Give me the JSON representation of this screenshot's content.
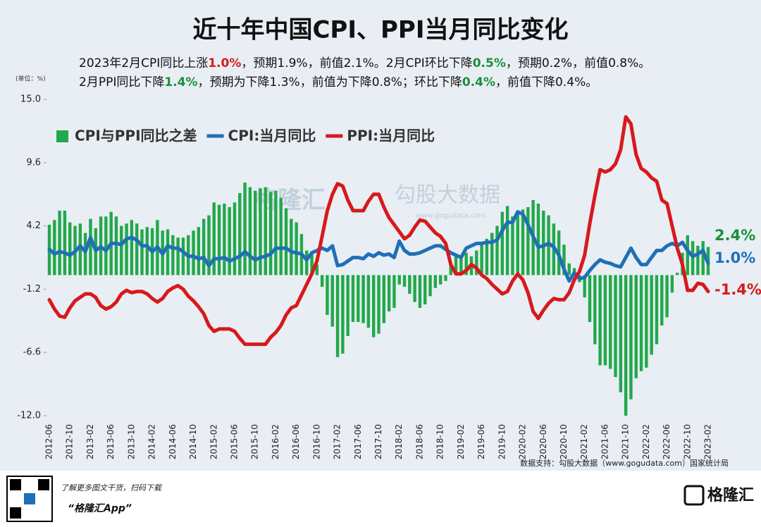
{
  "chart_data": {
    "type": "combo",
    "title": "近十年中国CPI、PPI当月同比变化",
    "subtitle_lines": [
      [
        "2023年2月CPI同比上涨",
        "1.0%",
        "，预期1.9%，前值2.1%。2月CPI环比下降",
        "0.5%",
        "，预期0.2%，前值0.8%。"
      ],
      [
        "2月PPI同比下降",
        "1.4%",
        "，预期为下降1.3%，前值为下降0.8%；环比下降",
        "0.4%",
        "，前值下降0.4%。"
      ]
    ],
    "unit_label": "(单位：%)",
    "source": "数据支持：勾股大数据（www.gogudata.com）国家统计局",
    "watermark": [
      "格隆汇",
      "勾股大数据",
      "www.gogudata.com"
    ],
    "footer": {
      "promo": "了解更多图文干货，扫码下载",
      "app": "“格隆汇App”",
      "logo": "格隆汇"
    },
    "categories": [
      "2012-06",
      null,
      null,
      null,
      "2012-10",
      null,
      null,
      null,
      "2013-02",
      null,
      null,
      null,
      "2013-06",
      null,
      null,
      null,
      "2013-10",
      null,
      null,
      null,
      "2014-02",
      null,
      null,
      null,
      "2014-06",
      null,
      null,
      null,
      "2014-10",
      null,
      null,
      null,
      "2015-02",
      null,
      null,
      null,
      "2015-06",
      null,
      null,
      null,
      "2015-10",
      null,
      null,
      null,
      "2016-02",
      null,
      null,
      null,
      "2016-06",
      null,
      null,
      null,
      "2016-10",
      null,
      null,
      null,
      "2017-02",
      null,
      null,
      null,
      "2017-06",
      null,
      null,
      null,
      "2017-10",
      null,
      null,
      null,
      "2018-02",
      null,
      null,
      null,
      "2018-06",
      null,
      null,
      null,
      "2018-10",
      null,
      null,
      null,
      "2019-02",
      null,
      null,
      null,
      "2019-06",
      null,
      null,
      null,
      "2019-10",
      null,
      null,
      null,
      "2020-02",
      null,
      null,
      null,
      "2020-06",
      null,
      null,
      null,
      "2020-10",
      null,
      null,
      null,
      "2021-02",
      null,
      null,
      null,
      "2021-06",
      null,
      null,
      null,
      "2021-10",
      null,
      null,
      null,
      "2022-02",
      null,
      null,
      null,
      "2022-06",
      null,
      null,
      null,
      "2022-10",
      null,
      null,
      null,
      "2023-02"
    ],
    "series": [
      {
        "name": "CPI与PPI同比之差",
        "type": "bar",
        "color": "#22a84a",
        "end_label": "2.4%",
        "values": [
          4.3,
          4.7,
          5.5,
          5.5,
          4.5,
          4.2,
          4.4,
          3.6,
          4.8,
          4.0,
          5.0,
          5.0,
          5.4,
          5.0,
          4.2,
          4.4,
          4.7,
          4.4,
          3.9,
          4.1,
          4.0,
          4.7,
          3.8,
          3.9,
          3.4,
          3.2,
          3.2,
          3.4,
          3.8,
          4.1,
          4.8,
          5.1,
          6.2,
          6.0,
          6.1,
          5.8,
          6.2,
          7.0,
          7.9,
          7.5,
          7.2,
          7.4,
          7.5,
          7.1,
          7.2,
          6.6,
          5.7,
          4.8,
          4.5,
          3.5,
          2.1,
          1.8,
          0.9,
          -1.0,
          -3.4,
          -4.4,
          -7.0,
          -6.7,
          -5.2,
          -4.0,
          -4.0,
          -4.1,
          -4.5,
          -5.3,
          -5.0,
          -4.1,
          -3.1,
          -2.8,
          -0.8,
          -1.0,
          -1.6,
          -2.3,
          -2.8,
          -2.5,
          -1.8,
          -1.1,
          -0.8,
          -0.5,
          1.0,
          1.6,
          1.4,
          1.9,
          1.6,
          2.1,
          2.7,
          3.1,
          3.6,
          4.2,
          5.4,
          5.9,
          5.0,
          5.3,
          5.6,
          5.8,
          6.4,
          6.1,
          5.5,
          5.1,
          4.4,
          3.8,
          2.6,
          1.0,
          0.6,
          -0.6,
          -1.9,
          -4.0,
          -5.9,
          -7.7,
          -7.7,
          -8.0,
          -8.7,
          -10.0,
          -12.0,
          -10.6,
          -8.8,
          -8.2,
          -7.9,
          -6.8,
          -5.9,
          -4.3,
          -3.6,
          -1.5,
          0.2,
          1.9,
          3.4,
          2.9,
          2.5,
          2.9,
          2.4
        ]
      },
      {
        "name": "CPI:当月同比",
        "type": "line",
        "color": "#1f6fb8",
        "end_label": "1.0%",
        "values": [
          2.2,
          1.8,
          2.0,
          1.9,
          1.7,
          2.0,
          2.5,
          2.0,
          3.2,
          2.1,
          2.4,
          2.1,
          2.7,
          2.7,
          2.6,
          3.1,
          3.2,
          3.0,
          2.5,
          2.5,
          2.0,
          2.4,
          1.8,
          2.5,
          2.3,
          2.3,
          2.0,
          1.6,
          1.6,
          1.4,
          1.5,
          0.8,
          1.4,
          1.4,
          1.5,
          1.2,
          1.4,
          1.6,
          2.0,
          1.6,
          1.3,
          1.5,
          1.6,
          1.8,
          2.3,
          2.3,
          2.3,
          2.0,
          1.9,
          1.8,
          1.3,
          1.9,
          2.1,
          2.3,
          2.1,
          2.5,
          0.8,
          0.9,
          1.2,
          1.5,
          1.5,
          1.4,
          1.8,
          1.6,
          1.9,
          1.7,
          1.8,
          1.5,
          2.9,
          2.1,
          1.8,
          1.8,
          1.9,
          2.1,
          2.3,
          2.5,
          2.5,
          2.2,
          1.9,
          1.7,
          1.5,
          2.3,
          2.5,
          2.7,
          2.7,
          2.8,
          2.8,
          3.0,
          3.8,
          4.5,
          4.5,
          5.4,
          5.2,
          4.3,
          3.3,
          2.4,
          2.5,
          2.7,
          2.4,
          1.7,
          0.5,
          -0.5,
          0.2,
          -0.3,
          -0.2,
          0.4,
          0.9,
          1.3,
          1.1,
          1.0,
          0.8,
          0.7,
          1.5,
          2.3,
          1.5,
          0.9,
          0.9,
          1.5,
          2.1,
          2.1,
          2.5,
          2.7,
          2.5,
          2.8,
          2.1,
          1.6,
          1.8,
          2.1,
          1.0
        ]
      },
      {
        "name": "PPI:当月同比",
        "type": "line",
        "color": "#d7191c",
        "end_label": "-1.4%",
        "values": [
          -2.1,
          -2.9,
          -3.5,
          -3.6,
          -2.8,
          -2.2,
          -1.9,
          -1.6,
          -1.6,
          -1.9,
          -2.6,
          -2.9,
          -2.7,
          -2.3,
          -1.6,
          -1.3,
          -1.5,
          -1.4,
          -1.4,
          -1.6,
          -2.0,
          -2.3,
          -2.0,
          -1.4,
          -1.1,
          -0.9,
          -1.2,
          -1.8,
          -2.2,
          -2.7,
          -3.3,
          -4.3,
          -4.8,
          -4.6,
          -4.6,
          -4.6,
          -4.8,
          -5.4,
          -5.9,
          -5.9,
          -5.9,
          -5.9,
          -5.9,
          -5.3,
          -4.9,
          -4.3,
          -3.4,
          -2.8,
          -2.6,
          -1.7,
          -0.8,
          0.1,
          1.2,
          3.3,
          5.5,
          6.9,
          7.8,
          7.6,
          6.4,
          5.5,
          5.5,
          5.5,
          6.3,
          6.9,
          6.9,
          5.8,
          4.9,
          4.3,
          3.7,
          3.1,
          3.4,
          4.1,
          4.7,
          4.6,
          4.1,
          3.6,
          3.3,
          2.7,
          0.9,
          0.1,
          0.1,
          0.4,
          0.9,
          0.6,
          0.0,
          -0.3,
          -0.8,
          -1.2,
          -1.6,
          -1.4,
          -0.5,
          0.1,
          -0.4,
          -1.5,
          -3.1,
          -3.7,
          -3.0,
          -2.4,
          -2.0,
          -2.1,
          -2.1,
          -1.5,
          -0.4,
          0.3,
          1.7,
          4.4,
          6.8,
          9.0,
          8.8,
          9.0,
          9.5,
          10.7,
          13.5,
          12.9,
          10.3,
          9.1,
          8.8,
          8.3,
          8.0,
          6.4,
          6.1,
          4.2,
          2.3,
          0.9,
          -1.3,
          -1.3,
          -0.7,
          -0.8,
          -1.4
        ]
      }
    ],
    "ylim": [
      -12,
      15
    ],
    "yticks": [
      {
        "value": -12,
        "label": "-12.0"
      },
      {
        "value": -6.6,
        "label": "-6.6"
      },
      {
        "value": -1.2,
        "label": "-1.2"
      },
      {
        "value": 4.2,
        "label": "4.2"
      },
      {
        "value": 9.6,
        "label": "9.6"
      },
      {
        "value": 15,
        "label": "15.0"
      }
    ],
    "grid": false
  }
}
